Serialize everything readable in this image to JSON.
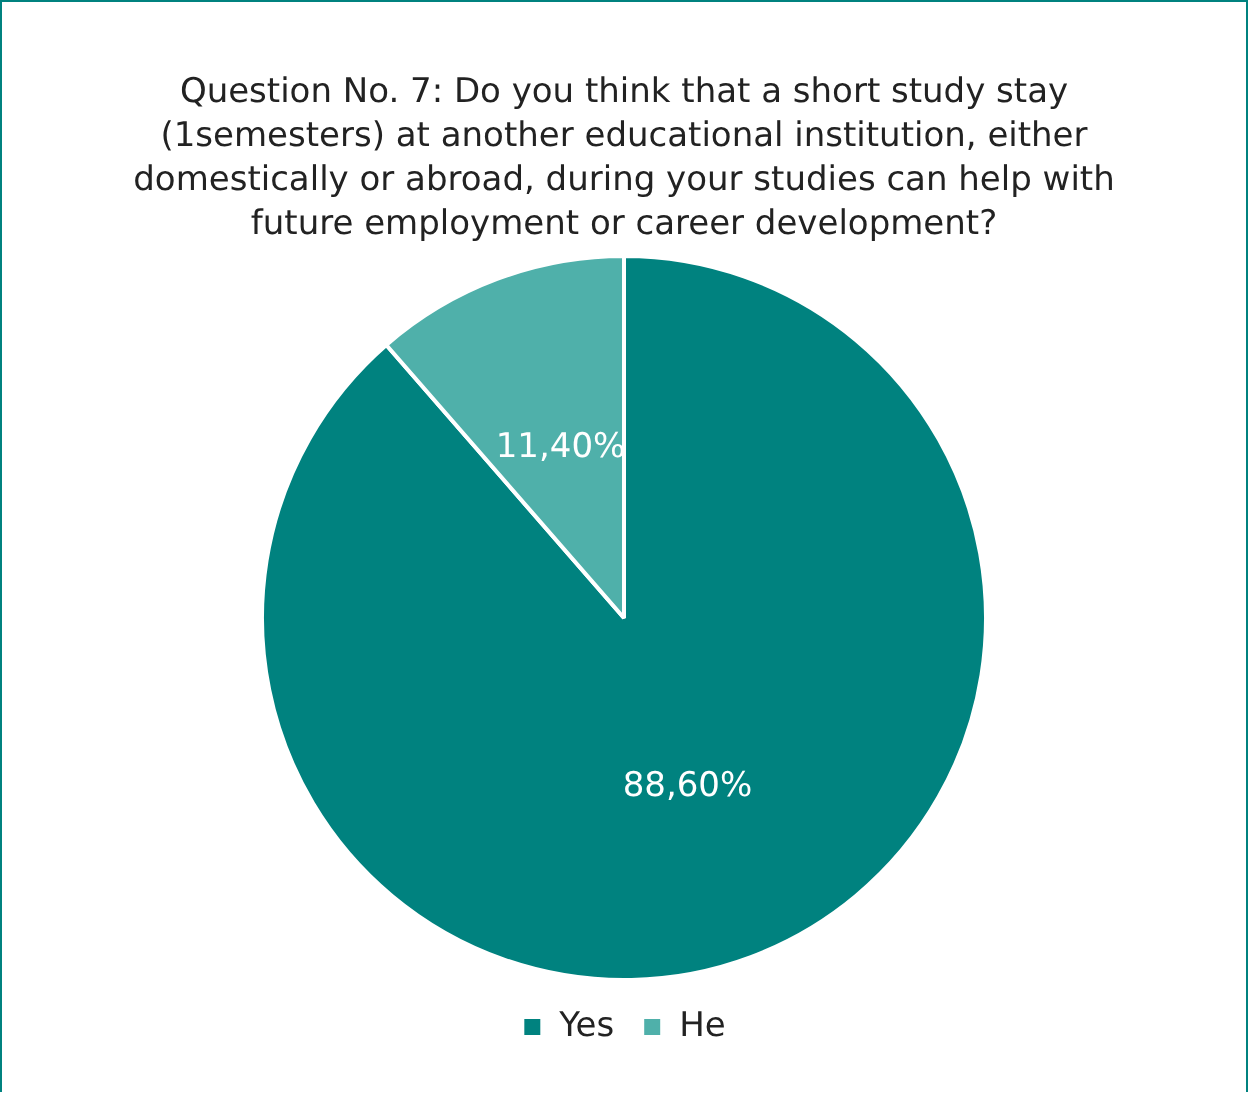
{
  "chart_data": {
    "type": "pie",
    "title": "Question No. 7: Do you think that a short study stay (1semesters) at another educational institution, either domestically or abroad, during your studies can help with future employment or career development?",
    "categories": [
      "Yes",
      "He"
    ],
    "values": [
      88.6,
      11.4
    ],
    "value_labels": [
      "88,60%",
      "11,40%"
    ],
    "colors": [
      "#00827f",
      "#4fb0aa"
    ],
    "legend": "bottom"
  }
}
